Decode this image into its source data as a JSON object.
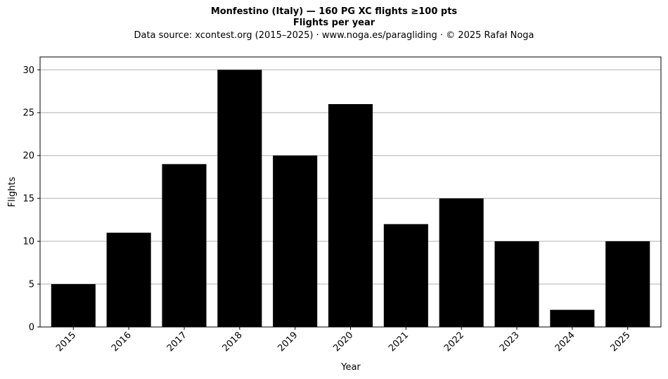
{
  "chart_data": {
    "type": "bar",
    "title": "Monfestino (Italy)  —  160 PG XC flights ≥100 pts",
    "subtitle": "Flights per year",
    "source": "Data source: xcontest.org (2015–2025)  ·  www.noga.es/paragliding  ·  © 2025 Rafał Noga",
    "xlabel": "Year",
    "ylabel": "Flights",
    "categories": [
      "2015",
      "2016",
      "2017",
      "2018",
      "2019",
      "2020",
      "2021",
      "2022",
      "2023",
      "2024",
      "2025"
    ],
    "values": [
      5,
      11,
      19,
      30,
      20,
      26,
      12,
      15,
      10,
      2,
      10
    ],
    "ylim": [
      0,
      31.5
    ],
    "yticks": [
      0,
      5,
      10,
      15,
      20,
      25,
      30
    ],
    "grid": "y-axis only",
    "bar_color": "#000000",
    "grid_color": "#b0b0b0"
  }
}
